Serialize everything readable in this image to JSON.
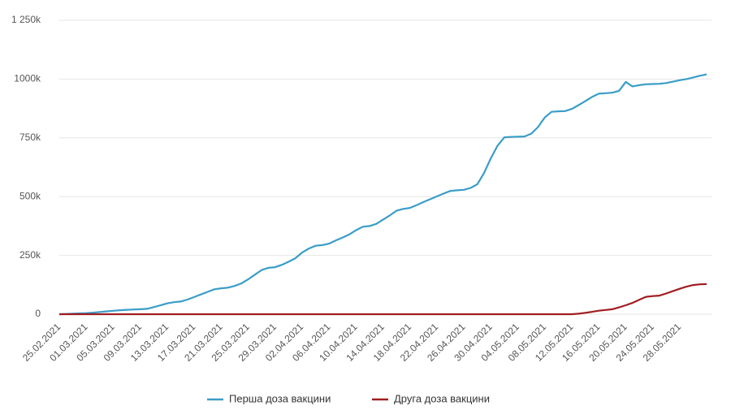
{
  "chart_data": {
    "type": "line",
    "categories": [
      "25.02.2021",
      null,
      null,
      null,
      "01.03.2021",
      null,
      null,
      null,
      "05.03.2021",
      null,
      null,
      null,
      "09.03.2021",
      null,
      null,
      null,
      "13.03.2021",
      null,
      null,
      null,
      "17.03.2021",
      null,
      null,
      null,
      "21.03.2021",
      null,
      null,
      null,
      "25.03.2021",
      null,
      null,
      null,
      "29.03.2021",
      null,
      null,
      null,
      "02.04.2021",
      null,
      null,
      null,
      "06.04.2021",
      null,
      null,
      null,
      "10.04.2021",
      null,
      null,
      null,
      "14.04.2021",
      null,
      null,
      null,
      "18.04.2021",
      null,
      null,
      null,
      "22.04.2021",
      null,
      null,
      null,
      "26.04.2021",
      null,
      null,
      null,
      "30.04.2021",
      null,
      null,
      null,
      "04.05.2021",
      null,
      null,
      null,
      "08.05.2021",
      null,
      null,
      null,
      "12.05.2021",
      null,
      null,
      null,
      "16.05.2021",
      null,
      null,
      null,
      "20.05.2021",
      null,
      null,
      null,
      "24.05.2021",
      null,
      null,
      null,
      "28.05.2021",
      null,
      null,
      null,
      null
    ],
    "series": [
      {
        "name": "Перша доза вакцини",
        "color": "#3a9dc8",
        "values": [
          0,
          1100,
          2200,
          3400,
          4500,
          6500,
          9200,
          12000,
          14500,
          17000,
          18800,
          19900,
          21000,
          22800,
          30000,
          37500,
          46000,
          51000,
          54000,
          62000,
          73000,
          84000,
          95000,
          106000,
          110000,
          113000,
          120000,
          131000,
          148000,
          168000,
          188000,
          197000,
          200000,
          210000,
          223000,
          238000,
          262000,
          279000,
          291000,
          294000,
          300000,
          314000,
          326000,
          339000,
          357000,
          372000,
          375000,
          384000,
          402000,
          420000,
          440000,
          448000,
          452000,
          464000,
          477000,
          489000,
          501000,
          513000,
          524000,
          527000,
          529000,
          537000,
          553000,
          601000,
          663000,
          717000,
          752000,
          754000,
          755000,
          756000,
          768000,
          796000,
          837000,
          861000,
          863000,
          864000,
          873000,
          889000,
          906000,
          924000,
          938000,
          940000,
          942000,
          950000,
          988000,
          969000,
          974000,
          978000,
          979000,
          980000,
          983000,
          989000,
          995000,
          1000000,
          1007000,
          1014000,
          1020000
        ]
      },
      {
        "name": "Друга доза вакцини",
        "color": "#a11d21",
        "values": [
          0,
          0,
          0,
          0,
          0,
          0,
          0,
          0,
          0,
          0,
          0,
          0,
          0,
          0,
          0,
          0,
          0,
          0,
          0,
          0,
          0,
          0,
          0,
          0,
          0,
          0,
          0,
          0,
          0,
          0,
          0,
          0,
          0,
          0,
          0,
          0,
          0,
          0,
          0,
          0,
          0,
          0,
          0,
          0,
          0,
          0,
          0,
          0,
          0,
          0,
          0,
          0,
          0,
          0,
          0,
          0,
          0,
          0,
          0,
          0,
          0,
          0,
          0,
          0,
          0,
          0,
          0,
          0,
          0,
          0,
          0,
          0,
          0,
          0,
          0,
          0,
          0,
          2000,
          6000,
          10000,
          15000,
          18000,
          21000,
          29000,
          38000,
          48000,
          61000,
          74000,
          77000,
          79000,
          88000,
          98000,
          108000,
          117000,
          124000,
          127000,
          128000
        ]
      }
    ],
    "ylim": [
      0,
      1250000
    ],
    "yticks": [
      0,
      {
        "value": 250000,
        "label": "250k"
      },
      {
        "value": 500000,
        "label": "500k"
      },
      {
        "value": 750000,
        "label": "750k"
      },
      {
        "value": 1000000,
        "label": "1000k"
      },
      {
        "value": 1250000,
        "label": "1 250k"
      }
    ],
    "grid": true,
    "legend": "bottom"
  }
}
